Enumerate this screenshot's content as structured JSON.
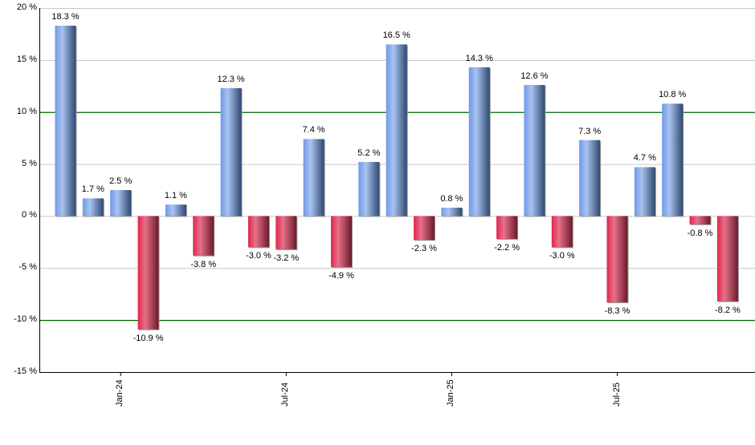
{
  "chart_data": {
    "type": "bar",
    "title": "",
    "xlabel": "",
    "ylabel": "",
    "ylim": [
      -15,
      20
    ],
    "yticks": [
      "20 %",
      "15 %",
      "10 %",
      "5 %",
      "0 %",
      "-5 %",
      "-10 %",
      "-15 %"
    ],
    "ytick_values": [
      20,
      15,
      10,
      5,
      0,
      -5,
      -10,
      -15
    ],
    "xtick_labels": [
      "Jan-24",
      "Jul-24",
      "Jan-25",
      "Jul-25"
    ],
    "xtick_bar_index": [
      2,
      8,
      14,
      20
    ],
    "reference_lines": [
      10,
      -10
    ],
    "grid": true,
    "categories": [
      "Nov-23",
      "Dec-23",
      "Jan-24",
      "Feb-24",
      "Mar-24",
      "Apr-24",
      "May-24",
      "Jun-24",
      "Jul-24",
      "Aug-24",
      "Sep-24",
      "Oct-24",
      "Nov-24",
      "Dec-24",
      "Jan-25",
      "Feb-25",
      "Mar-25",
      "Apr-25",
      "May-25",
      "Jun-25",
      "Jul-25",
      "Aug-25",
      "Sep-25",
      "Oct-25",
      "Nov-25"
    ],
    "values": [
      18.3,
      1.7,
      2.5,
      -10.9,
      1.1,
      -3.8,
      12.3,
      -3.0,
      -3.2,
      7.4,
      -4.9,
      5.2,
      16.5,
      -2.3,
      0.8,
      14.3,
      -2.2,
      12.6,
      -3.0,
      7.3,
      -8.3,
      4.7,
      10.8,
      -0.8,
      -8.2
    ],
    "labels": [
      "18.3 %",
      "1.7 %",
      "2.5 %",
      "-10.9 %",
      "1.1 %",
      "-3.8 %",
      "12.3 %",
      "-3.0 %",
      "-3.2 %",
      "7.4 %",
      "-4.9 %",
      "5.2 %",
      "16.5 %",
      "-2.3 %",
      "0.8 %",
      "14.3 %",
      "-2.2 %",
      "12.6 %",
      "-3.0 %",
      "7.3 %",
      "-8.3 %",
      "4.7 %",
      "10.8 %",
      "-0.8 %",
      "-8.2 %"
    ],
    "colors": {
      "positive": "#6f93d8",
      "negative": "#c8304f",
      "reference": "#006400",
      "grid": "#c8c8c8",
      "axis": "#000000"
    }
  }
}
